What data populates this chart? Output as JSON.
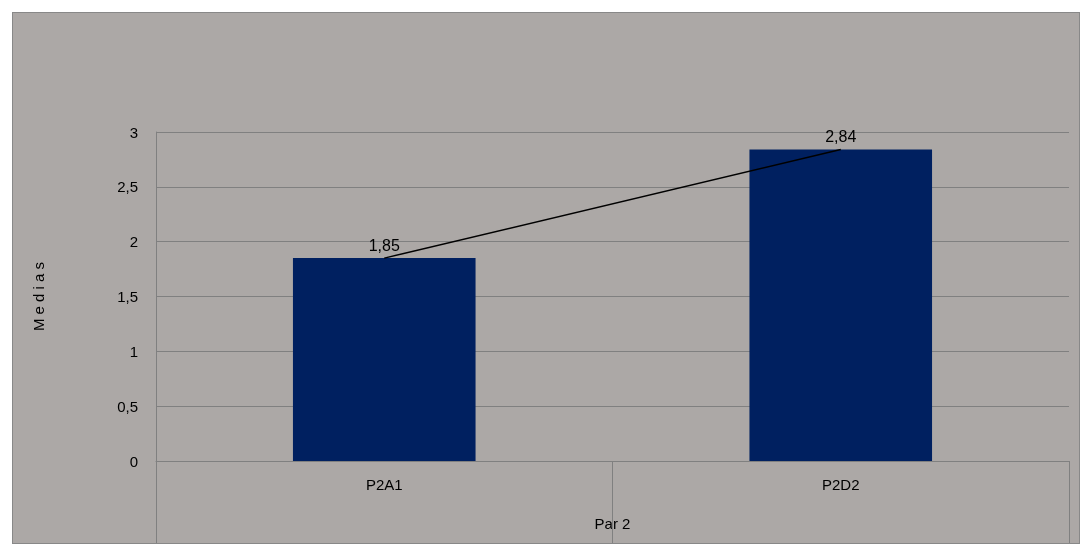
{
  "chart_data": {
    "type": "bar",
    "ylabel": "M e d i a s",
    "xlabel": "Par 2",
    "categories": [
      "P2A1",
      "P2D2"
    ],
    "series": [
      {
        "color": "#002060",
        "values": [
          1.85,
          2.84
        ],
        "value_labels": [
          "1,85",
          "2,84"
        ]
      },
      {
        "type": "line",
        "color": "#000000",
        "values": [
          1.85,
          2.84
        ]
      }
    ],
    "ylim": [
      0,
      3
    ],
    "yticks": [
      0,
      {
        "value": 0.5,
        "label": "0,5"
      },
      1,
      {
        "value": 1.5,
        "label": "1,5"
      },
      2,
      {
        "value": 2.5,
        "label": "2,5"
      },
      3
    ],
    "grid": "y",
    "marker": "none"
  }
}
